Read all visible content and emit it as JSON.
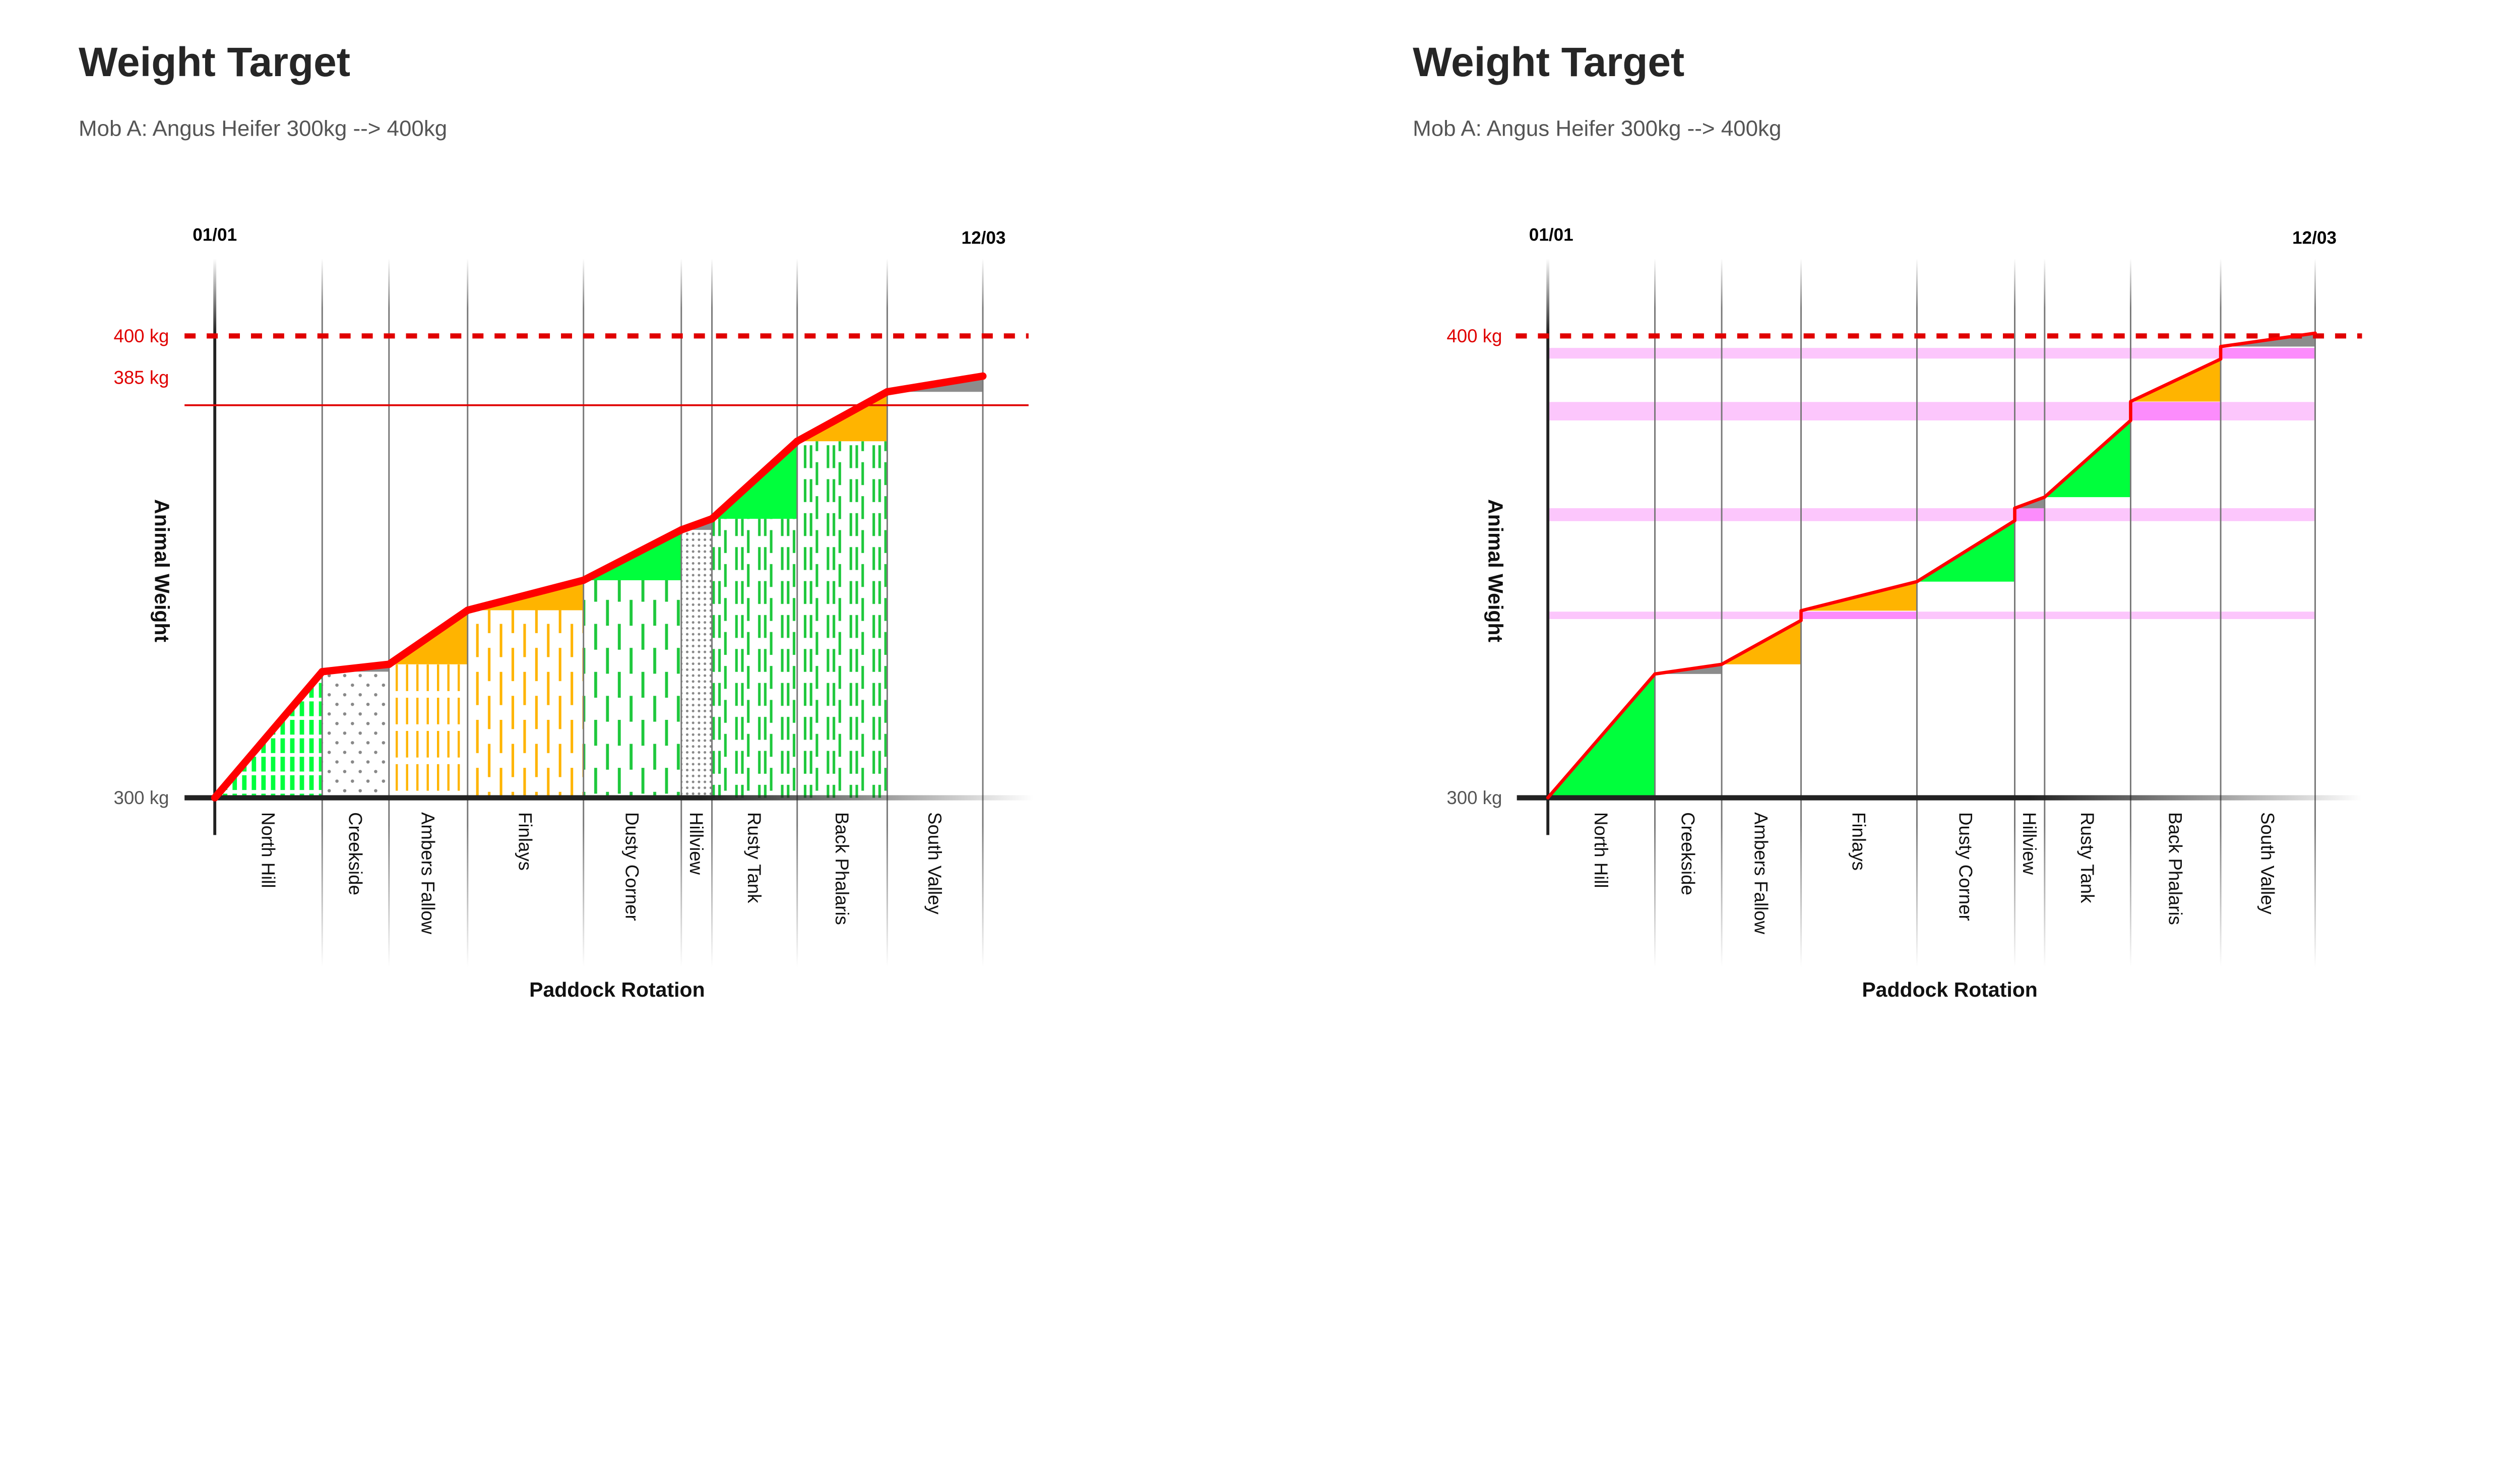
{
  "colors": {
    "line": "#ff0000",
    "gain_green": "#00ff3c",
    "gain_orange": "#ffb400",
    "gain_gray": "#8c8c8c",
    "band_light": "#fcc6fc",
    "band_dark": "#fc8cfc",
    "pattern_green": "#1ec83c",
    "pattern_orange": "#ffb400",
    "pattern_gray": "#888888"
  },
  "chart_data": [
    {
      "type": "line",
      "title": "Weight Target",
      "subtitle": "Mob A: Angus Heifer 300kg --> 400kg",
      "xlabel": "Paddock Rotation",
      "ylabel": "Animal Weight",
      "start_date": "01/01",
      "end_date": "12/03",
      "ylim": [
        300,
        400
      ],
      "y_labels": {
        "min": "300 kg",
        "target": "400 kg",
        "reference": "385 kg"
      },
      "target_kg": 400,
      "reference_kg": 385,
      "paddocks": [
        {
          "name": "North Hill",
          "start_kg": 300,
          "end_kg": 327.3,
          "gain": "green",
          "pattern": "green-stripes"
        },
        {
          "name": "Creekside",
          "start_kg": 327.3,
          "end_kg": 328.9,
          "gain": "gray",
          "pattern": "gray-dots"
        },
        {
          "name": "Ambers Fallow",
          "start_kg": 328.9,
          "end_kg": 340.6,
          "gain": "orange",
          "pattern": "orange-dense"
        },
        {
          "name": "Finlays",
          "start_kg": 340.6,
          "end_kg": 347.1,
          "gain": "orange",
          "pattern": "orange-dashes"
        },
        {
          "name": "Dusty Corner",
          "start_kg": 347.1,
          "end_kg": 358.0,
          "gain": "green",
          "pattern": "green-dashes"
        },
        {
          "name": "Hillview",
          "start_kg": 358.0,
          "end_kg": 360.4,
          "gain": "gray",
          "pattern": "gray-dense"
        },
        {
          "name": "Rusty Tank",
          "start_kg": 360.4,
          "end_kg": 377.2,
          "gain": "green",
          "pattern": "green-double"
        },
        {
          "name": "Back Phalaris",
          "start_kg": 377.2,
          "end_kg": 387.9,
          "gain": "orange",
          "pattern": "green-double"
        },
        {
          "name": "South Valley",
          "start_kg": 387.9,
          "end_kg": 391.3,
          "gain": "gray",
          "pattern": "none"
        }
      ],
      "bands": []
    },
    {
      "type": "line",
      "title": "Weight Target",
      "subtitle": "Mob A: Angus Heifer 300kg --> 400kg",
      "xlabel": "Paddock Rotation",
      "ylabel": "Animal Weight",
      "start_date": "01/01",
      "end_date": "12/03",
      "ylim": [
        300,
        400
      ],
      "y_labels": {
        "min": "300 kg",
        "target": "400 kg"
      },
      "target_kg": 400,
      "paddocks": [
        {
          "name": "North Hill",
          "start_kg": 300,
          "end_kg": 326.8,
          "gain": "green",
          "pattern": "none"
        },
        {
          "name": "Creekside",
          "start_kg": 326.8,
          "end_kg": 328.9,
          "gain": "gray",
          "pattern": "none"
        },
        {
          "name": "Ambers Fallow",
          "start_kg": 328.9,
          "end_kg": 338.4,
          "gain": "orange",
          "pattern": "none"
        },
        {
          "name": "Finlays",
          "start_kg": 340.5,
          "end_kg": 346.8,
          "gain": "orange",
          "pattern": "none"
        },
        {
          "name": "Dusty Corner",
          "start_kg": 346.8,
          "end_kg": 360.0,
          "gain": "green",
          "pattern": "none"
        },
        {
          "name": "Hillview",
          "start_kg": 362.7,
          "end_kg": 365.1,
          "gain": "gray",
          "pattern": "none"
        },
        {
          "name": "Rusty Tank",
          "start_kg": 365.1,
          "end_kg": 381.7,
          "gain": "green",
          "pattern": "none"
        },
        {
          "name": "Back Phalaris",
          "start_kg": 385.8,
          "end_kg": 395.0,
          "gain": "orange",
          "pattern": "none"
        },
        {
          "name": "South Valley",
          "start_kg": 397.7,
          "end_kg": 400.6,
          "gain": "gray",
          "pattern": "none"
        }
      ],
      "bands": [
        {
          "from_kg": 395.1,
          "to_kg": 397.4,
          "highlight": "South Valley"
        },
        {
          "from_kg": 381.7,
          "to_kg": 385.7,
          "highlight": "Back Phalaris"
        },
        {
          "from_kg": 359.9,
          "to_kg": 362.7,
          "highlight": "Hillview"
        },
        {
          "from_kg": 338.7,
          "to_kg": 340.3,
          "highlight": "Finlays"
        }
      ]
    }
  ]
}
